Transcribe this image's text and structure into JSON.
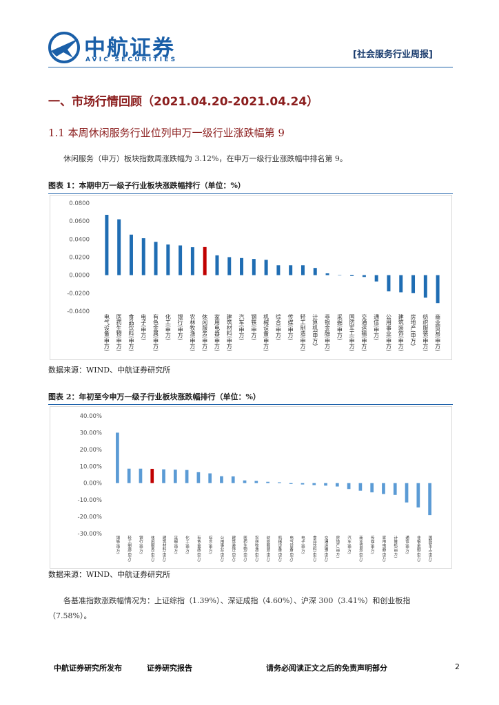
{
  "header": {
    "logo_cn": "中航证券",
    "logo_en": "AVIC SECURITIES",
    "report_type": "[社会服务行业周报]"
  },
  "heading": "一、市场行情回顾（2021.04.20-2021.04.24）",
  "subheading": "1.1 本周休闲服务行业位列申万一级行业涨跌幅第 9",
  "paragraph_1": "休闲服务（申万）板块指数周涨跌幅为 3.12%，在申万一级行业涨跌幅中排名第 9。",
  "figures": [
    {
      "caption": "图表 1：本期申万一级子行业板块涨跌幅排行（单位：%）",
      "source": "数据来源：WIND、中航证券研究所",
      "chart_data": {
        "type": "bar",
        "categories": [
          "电气设备(申万)",
          "医药生物(申万)",
          "食品饮料(申万)",
          "电子(申万)",
          "有色金属(申万)",
          "化工(申万)",
          "银行(申万)",
          "农林牧渔(申万)",
          "休闲服务(申万)",
          "家用电器(申万)",
          "建筑材料(申万)",
          "汽车(申万)",
          "钢铁(申万)",
          "机械设备(申万)",
          "综合(申万)",
          "传媒(申万)",
          "轻工制造(申万)",
          "计算机(申万)",
          "非银金融(申万)",
          "采掘(申万)",
          "国防军工(申万)",
          "交通运输(申万)",
          "通信(申万)",
          "公用事业(申万)",
          "建筑装饰(申万)",
          "房地产(申万)",
          "纺织服装(申万)",
          "商业贸易(申万)"
        ],
        "values": [
          0.067,
          0.062,
          0.045,
          0.041,
          0.037,
          0.034,
          0.033,
          0.031,
          0.0312,
          0.022,
          0.02,
          0.019,
          0.018,
          0.017,
          0.011,
          0.011,
          0.011,
          0.008,
          0.002,
          0.0,
          -0.001,
          -0.002,
          -0.007,
          -0.018,
          -0.019,
          -0.02,
          -0.025,
          -0.031
        ],
        "colors": [
          "#1f6db3",
          "#1f6db3",
          "#1f6db3",
          "#1f6db3",
          "#1f6db3",
          "#1f6db3",
          "#1f6db3",
          "#1f6db3",
          "#c00000",
          "#1f6db3",
          "#1f6db3",
          "#1f6db3",
          "#1f6db3",
          "#1f6db3",
          "#1f6db3",
          "#1f6db3",
          "#1f6db3",
          "#1f6db3",
          "#1f6db3",
          "#1f6db3",
          "#1f6db3",
          "#1f6db3",
          "#1f6db3",
          "#1f6db3",
          "#1f6db3",
          "#1f6db3",
          "#1f6db3",
          "#1f6db3"
        ],
        "ylim": [
          -0.04,
          0.08
        ],
        "yticks": [
          {
            "value": -0.04,
            "label": "-0.0400"
          },
          {
            "value": -0.02,
            "label": "-0.0200"
          },
          {
            "value": 0,
            "label": "0.0000"
          },
          {
            "value": 0.02,
            "label": "0.0200"
          },
          {
            "value": 0.04,
            "label": "0.0400"
          },
          {
            "value": 0.06,
            "label": "0.0600"
          },
          {
            "value": 0.08,
            "label": "0.0800"
          }
        ],
        "grid": false
      }
    },
    {
      "caption": "图表 2：年初至今申万一级子行业板块涨跌幅排行（单位：%）",
      "source": "数据来源：WIND、中航证券研究所",
      "chart_data": {
        "type": "bar",
        "categories": [
          "钢铁(申万)",
          "轻工制造(申万)",
          "银行(申万)",
          "休闲服务(申万)",
          "建筑材料(申万)",
          "采掘(申万)",
          "化工(申万)",
          "有色金属(申万)",
          "综合(申万)",
          "公用事业(申万)",
          "建筑装饰(申万)",
          "医药生物(申万)",
          "农林牧渔(申万)",
          "纺织服装(申万)",
          "机械设备(申万)",
          "电气设备(申万)",
          "电子(申万)",
          "食品饮料(申万)",
          "交通运输(申万)",
          "房地产(申万)",
          "汽车(申万)",
          "商业贸易(申万)",
          "传媒(申万)",
          "家用电器(申万)",
          "计算机(申万)",
          "通信(申万)",
          "非银金融(申万)",
          "国防军工(申万)"
        ],
        "values": [
          30,
          8.6,
          8.6,
          8.5,
          8.2,
          8,
          7.8,
          6.5,
          5.8,
          4.1,
          4,
          1.6,
          1.3,
          0.8,
          0.5,
          -0.5,
          -0.8,
          -1.2,
          -1.5,
          -2,
          -3.5,
          -4.5,
          -5.5,
          -6.5,
          -7,
          -11.5,
          -14.5,
          -19
        ],
        "colors": [
          "#5b9bd5",
          "#5b9bd5",
          "#5b9bd5",
          "#c00000",
          "#5b9bd5",
          "#5b9bd5",
          "#5b9bd5",
          "#5b9bd5",
          "#5b9bd5",
          "#5b9bd5",
          "#5b9bd5",
          "#5b9bd5",
          "#5b9bd5",
          "#5b9bd5",
          "#5b9bd5",
          "#5b9bd5",
          "#5b9bd5",
          "#5b9bd5",
          "#5b9bd5",
          "#5b9bd5",
          "#5b9bd5",
          "#5b9bd5",
          "#5b9bd5",
          "#5b9bd5",
          "#5b9bd5",
          "#5b9bd5",
          "#5b9bd5",
          "#5b9bd5"
        ],
        "ylim": [
          -30,
          40
        ],
        "yticks": [
          {
            "value": -30,
            "label": "-30.00%"
          },
          {
            "value": -20,
            "label": "-20.00%"
          },
          {
            "value": -10,
            "label": "-10.00%"
          },
          {
            "value": 0,
            "label": "0.00%"
          },
          {
            "value": 10,
            "label": "10.00%"
          },
          {
            "value": 20,
            "label": "20.00%"
          },
          {
            "value": 30,
            "label": "30.00%"
          },
          {
            "value": 40,
            "label": "40.00%"
          }
        ],
        "grid": false
      }
    }
  ],
  "paragraph_2": "各基准指数涨跌幅情况为：上证综指（1.39%）、深证成指（4.60%）、沪深 300（3.41%）和创业板指（7.58%）。",
  "footer": {
    "left": "中航证券研究所发布",
    "middle": "证券研究报告",
    "right": "请务必阅读正文之后的免责声明部分",
    "page": "2"
  }
}
